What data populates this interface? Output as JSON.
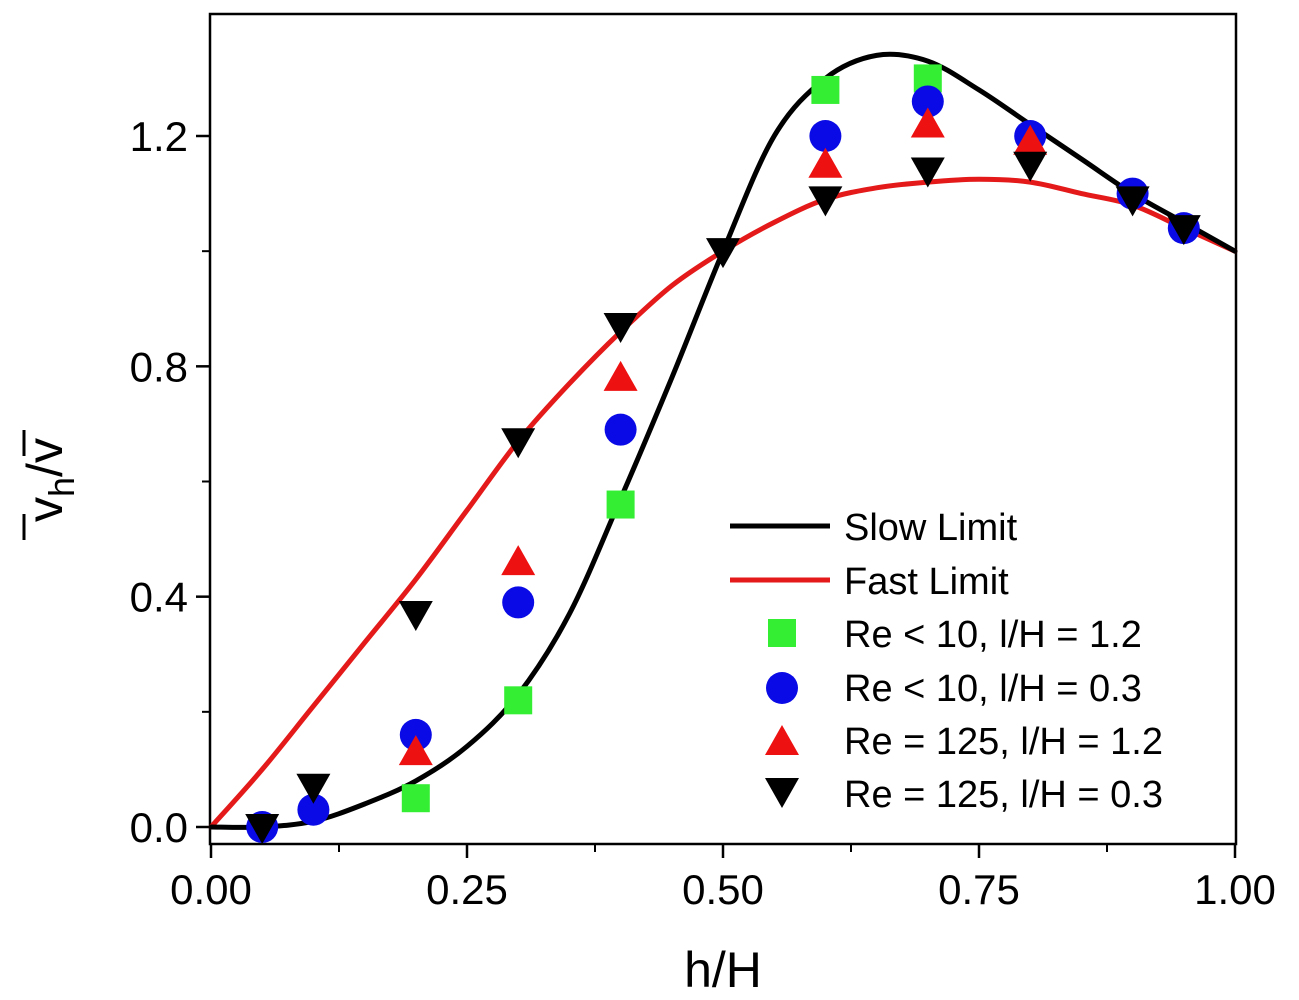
{
  "chart_data": {
    "type": "scatter",
    "xlabel": "h/H",
    "ylabel": {
      "main": "v",
      "sub": "h",
      "rest": "/v"
    },
    "xlim": [
      0.0,
      1.0
    ],
    "ylim": [
      -0.02,
      1.38
    ],
    "x_ticks": [
      0.0,
      0.25,
      0.5,
      0.75,
      1.0
    ],
    "x_tick_labels": [
      "0.00",
      "0.25",
      "0.50",
      "0.75",
      "1.00"
    ],
    "y_ticks": [
      0.0,
      0.4,
      0.8,
      1.2
    ],
    "y_tick_labels": [
      "0.0",
      "0.4",
      "0.8",
      "1.2"
    ],
    "x_minor_ticks": [
      0.125,
      0.375,
      0.625,
      0.875
    ],
    "y_minor_ticks": [
      0.2,
      0.6,
      1.0
    ],
    "legend_position": "bottom-right",
    "lines": [
      {
        "name": "Slow Limit",
        "color": "#000000",
        "x": [
          0,
          0.05,
          0.1,
          0.15,
          0.2,
          0.25,
          0.3,
          0.35,
          0.4,
          0.45,
          0.5,
          0.55,
          0.6,
          0.65,
          0.7,
          0.75,
          0.8,
          0.85,
          0.9,
          0.95,
          1.0
        ],
        "y": [
          0.0,
          0.0,
          0.01,
          0.04,
          0.08,
          0.14,
          0.23,
          0.37,
          0.57,
          0.78,
          1.0,
          1.2,
          1.3,
          1.34,
          1.33,
          1.28,
          1.22,
          1.16,
          1.1,
          1.05,
          1.0
        ]
      },
      {
        "name": "Fast Limit",
        "color": "#e41a1a",
        "x": [
          0,
          0.05,
          0.1,
          0.15,
          0.2,
          0.25,
          0.3,
          0.35,
          0.4,
          0.45,
          0.5,
          0.55,
          0.6,
          0.65,
          0.7,
          0.75,
          0.8,
          0.85,
          0.9,
          0.95,
          1.0
        ],
        "y": [
          0.0,
          0.1,
          0.21,
          0.32,
          0.43,
          0.55,
          0.67,
          0.77,
          0.86,
          0.94,
          1.0,
          1.05,
          1.09,
          1.11,
          1.12,
          1.125,
          1.12,
          1.1,
          1.08,
          1.04,
          1.0
        ]
      }
    ],
    "series": [
      {
        "name": "Re < 10, l/H = 1.2",
        "marker": "square",
        "color": "#33ee33",
        "x": [
          0.2,
          0.3,
          0.4,
          0.6,
          0.7
        ],
        "y": [
          0.05,
          0.22,
          0.56,
          1.28,
          1.3
        ]
      },
      {
        "name": "Re < 10, l/H = 0.3",
        "marker": "circle",
        "color": "#0a0ae6",
        "x": [
          0.05,
          0.1,
          0.2,
          0.3,
          0.4,
          0.6,
          0.7,
          0.8,
          0.9,
          0.95
        ],
        "y": [
          0.0,
          0.03,
          0.16,
          0.39,
          0.69,
          1.2,
          1.26,
          1.2,
          1.1,
          1.04
        ]
      },
      {
        "name": "Re = 125, l/H = 1.2",
        "marker": "triangle-up",
        "color": "#ee1111",
        "x": [
          0.2,
          0.3,
          0.4,
          0.6,
          0.7,
          0.8
        ],
        "y": [
          0.13,
          0.46,
          0.78,
          1.15,
          1.22,
          1.19
        ]
      },
      {
        "name": "Re = 125, l/H = 0.3",
        "marker": "triangle-down",
        "color": "#000000",
        "x": [
          0.05,
          0.1,
          0.2,
          0.3,
          0.4,
          0.5,
          0.6,
          0.7,
          0.8,
          0.9,
          0.95
        ],
        "y": [
          0.0,
          0.07,
          0.37,
          0.67,
          0.87,
          1.0,
          1.09,
          1.14,
          1.15,
          1.09,
          1.04
        ]
      }
    ]
  }
}
